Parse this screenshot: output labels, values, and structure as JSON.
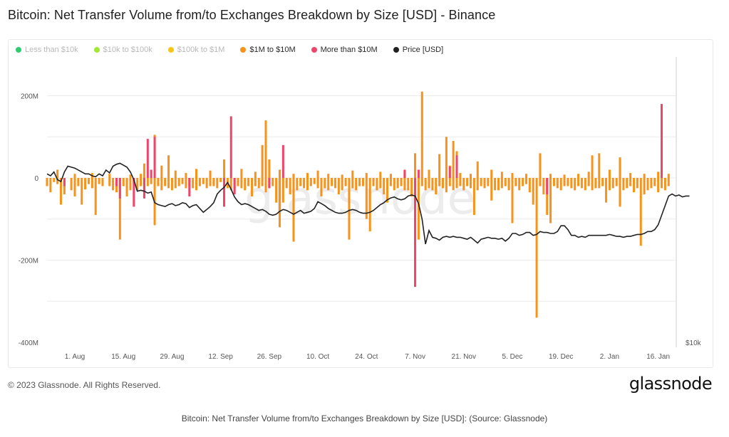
{
  "page": {
    "title": "Bitcoin: Net Transfer Volume from/to Exchanges Breakdown by Size [USD] - Binance",
    "copyright": "© 2023 Glassnode. All Rights Reserved.",
    "brand": "glassnode",
    "watermark": "glassnode",
    "caption": "Bitcoin: Net Transfer Volume from/to Exchanges Breakdown by Size [USD]: (Source: Glassnode)"
  },
  "legend": [
    {
      "label": "Less than $10k",
      "color": "#2ecc71",
      "active": false
    },
    {
      "label": "$10k to $100k",
      "color": "#a3e635",
      "active": false
    },
    {
      "label": "$100k to $1M",
      "color": "#f5c518",
      "active": false
    },
    {
      "label": "$1M to $10M",
      "color": "#f7931a",
      "active": true
    },
    {
      "label": "More than $10M",
      "color": "#f0456a",
      "active": true
    },
    {
      "label": "Price [USD]",
      "color": "#222222",
      "active": true
    }
  ],
  "chart_data": {
    "type": "bar",
    "title": "Bitcoin: Net Transfer Volume from/to Exchanges Breakdown by Size [USD] - Binance",
    "ylim": [
      -400,
      200
    ],
    "y_unit": "M USD",
    "yticks": [
      "200M",
      "0",
      "-200M",
      "-400M"
    ],
    "ytick_values": [
      200,
      0,
      -200,
      -400
    ],
    "right_axis_label": "$10k",
    "xticks": [
      "1. Aug",
      "15. Aug",
      "29. Aug",
      "12. Sep",
      "26. Sep",
      "10. Oct",
      "24. Oct",
      "7. Nov",
      "21. Nov",
      "5. Dec",
      "19. Dec",
      "2. Jan",
      "16. Jan"
    ],
    "xtick_day_index": [
      8,
      22,
      36,
      50,
      64,
      78,
      92,
      106,
      120,
      134,
      148,
      162,
      176
    ],
    "day_range": [
      0,
      181
    ],
    "series": [
      {
        "name": "$1M to $10M",
        "color": "#f7931a",
        "values": [
          -20,
          -35,
          -10,
          -15,
          -65,
          -40,
          0,
          -30,
          -45,
          -20,
          -65,
          -28,
          -15,
          -25,
          -90,
          -15,
          -20,
          0,
          -20,
          -30,
          -35,
          -150,
          -20,
          -45,
          -30,
          -15,
          -30,
          -20,
          -45,
          -20,
          -15,
          -115,
          -20,
          -30,
          -20,
          -25,
          -30,
          -25,
          -20,
          -15,
          -25,
          -20,
          -25,
          -30,
          -20,
          -15,
          -25,
          -20,
          -20,
          -25,
          -10,
          -20,
          -25,
          -30,
          -35,
          -20,
          -25,
          -30,
          -20,
          -45,
          -20,
          -25,
          -20,
          -35,
          -25,
          -20,
          -60,
          -120,
          -60,
          -25,
          -40,
          -155,
          -30,
          -20,
          -25,
          -30,
          -20,
          -15,
          -25,
          -45,
          -25,
          -30,
          -20,
          -25,
          -40,
          -30,
          -20,
          -150,
          -25,
          -30,
          -20,
          -20,
          -100,
          -130,
          -20,
          -30,
          -25,
          -40,
          -60,
          -20,
          -30,
          -25,
          -20,
          -30,
          -30,
          -45,
          -20,
          -150,
          -20,
          -30,
          -25,
          -30,
          -40,
          -20,
          -25,
          -35,
          -20,
          -30,
          -25,
          -20,
          -30,
          -20,
          -25,
          -90,
          -30,
          -20,
          -25,
          -20,
          -55,
          -30,
          -30,
          -25,
          -20,
          -30,
          -110,
          -20,
          -30,
          -20,
          -15,
          -35,
          -65,
          -340,
          -20,
          -40,
          -90,
          -110,
          -20,
          -25,
          -30,
          -20,
          -20,
          -25,
          -30,
          -20,
          -25,
          -30,
          -20,
          -30,
          -25,
          -25,
          -20,
          -60,
          -30,
          -25,
          -20,
          -70,
          -30,
          -25,
          -20,
          -35,
          -25,
          -165,
          -40,
          -30,
          -25,
          -20,
          -35,
          -25,
          -30,
          -20
        ],
        "pos": [
          0,
          0,
          0,
          0,
          0,
          0,
          0,
          0,
          0,
          0,
          0,
          0,
          0,
          0,
          0,
          0,
          0,
          0,
          0,
          0,
          0,
          0,
          0,
          0,
          0,
          0,
          0,
          0,
          0,
          0,
          0,
          0,
          0,
          0,
          0,
          0,
          0,
          0,
          0,
          0,
          0,
          0,
          0,
          0,
          0,
          0,
          0,
          0,
          0,
          0,
          0,
          0,
          0,
          0,
          0,
          0,
          0,
          0,
          0,
          0,
          0,
          0,
          0,
          0,
          0,
          0,
          0,
          0,
          0,
          0,
          0,
          0,
          0,
          0,
          0,
          0,
          0,
          0,
          0,
          0,
          0,
          0,
          0,
          0,
          0,
          0,
          0,
          0,
          0,
          0,
          0,
          0,
          0,
          0,
          0,
          0,
          0,
          0,
          0,
          0,
          0,
          0,
          0,
          0,
          0,
          0,
          0,
          0,
          0,
          0,
          0,
          0,
          0,
          0,
          0,
          0,
          0,
          0,
          0,
          0,
          0,
          0,
          0,
          0,
          0,
          0,
          0,
          0,
          0,
          0,
          0,
          0,
          0,
          0,
          0,
          0,
          0,
          0,
          0,
          0,
          0,
          0,
          0,
          0,
          0,
          0,
          0,
          0,
          0,
          0,
          0,
          0,
          0,
          0,
          0,
          0,
          0,
          0,
          0,
          0,
          0,
          0,
          0,
          0,
          0,
          0,
          0,
          0,
          0,
          0,
          0,
          0,
          0,
          0,
          0,
          0,
          0,
          0,
          0,
          0,
          0,
          0
        ]
      },
      {
        "name": "More than $10M",
        "color": "#f0456a",
        "values": [
          0,
          0,
          0,
          0,
          0,
          -20,
          0,
          0,
          0,
          0,
          0,
          0,
          0,
          0,
          0,
          0,
          0,
          0,
          0,
          0,
          -20,
          -50,
          0,
          0,
          0,
          -70,
          0,
          0,
          -50,
          0,
          0,
          0,
          0,
          0,
          0,
          0,
          0,
          0,
          0,
          0,
          0,
          -45,
          0,
          0,
          0,
          0,
          0,
          0,
          0,
          0,
          0,
          -70,
          0,
          0,
          -40,
          0,
          0,
          0,
          0,
          0,
          0,
          0,
          0,
          0,
          -25,
          0,
          0,
          0,
          0,
          0,
          0,
          0,
          0,
          0,
          0,
          0,
          0,
          0,
          0,
          0,
          0,
          0,
          0,
          0,
          0,
          0,
          0,
          0,
          0,
          0,
          0,
          0,
          0,
          0,
          0,
          0,
          0,
          0,
          0,
          0,
          0,
          0,
          0,
          0,
          0,
          0,
          -265,
          0,
          0,
          0,
          0,
          0,
          0,
          0,
          0,
          0,
          0,
          0,
          0,
          0,
          0,
          0,
          0,
          0,
          0,
          0,
          0,
          0,
          0,
          0,
          0,
          0,
          0,
          0,
          0,
          0,
          0,
          0,
          0,
          0,
          0,
          0,
          0,
          0,
          -40,
          0,
          0,
          0,
          0,
          0,
          0,
          0,
          0,
          0,
          0,
          0,
          0,
          0,
          0,
          0,
          0,
          0,
          0,
          0,
          0,
          0,
          0,
          0,
          0,
          0,
          0,
          0,
          0,
          0,
          0,
          0,
          0,
          0,
          0,
          0,
          0,
          0,
          0,
          0,
          0,
          0
        ],
        "pos": [
          0,
          0,
          0,
          0,
          0,
          0,
          0,
          0,
          0,
          0,
          0,
          0,
          0,
          0,
          0,
          0,
          0,
          0,
          0,
          0,
          0,
          0,
          0,
          0,
          0,
          0,
          0,
          0,
          0,
          0,
          0,
          0,
          0,
          0,
          0,
          0,
          0,
          0,
          0,
          0,
          0,
          0,
          0,
          0,
          0,
          0,
          0,
          0,
          0,
          0,
          0,
          0,
          0,
          0,
          0,
          0,
          0,
          0,
          0,
          0,
          0,
          0,
          0,
          0,
          0,
          0,
          0,
          0,
          0,
          0,
          0,
          0,
          0,
          0,
          0,
          0,
          0,
          0,
          0,
          0,
          0,
          0,
          0,
          0,
          0,
          0,
          0,
          0,
          0,
          0,
          0,
          0,
          0,
          0,
          0,
          0,
          0,
          0,
          0,
          0,
          0,
          0,
          0,
          0,
          0,
          0,
          0,
          0,
          0,
          0,
          0,
          0,
          0,
          0,
          0,
          0,
          0,
          0,
          0,
          0,
          0,
          0,
          0,
          0,
          0,
          0,
          0,
          0,
          0,
          0,
          0,
          0,
          0,
          0,
          0,
          0,
          0,
          0,
          0,
          0,
          0,
          0,
          0,
          0,
          0,
          0,
          0,
          0,
          0,
          0,
          0,
          0,
          0,
          0,
          0,
          0,
          0,
          0,
          0,
          0,
          0,
          0,
          0,
          0,
          0,
          0,
          0,
          0,
          0,
          0,
          0,
          0,
          0,
          0,
          0,
          0,
          0,
          0,
          0,
          0,
          0,
          0
        ]
      },
      {
        "name": "Price [USD]",
        "color": "#222222",
        "values": [
          23.2,
          23.0,
          23.4,
          22.6,
          22.4,
          23.4,
          24.0,
          23.9,
          23.8,
          23.6,
          23.4,
          23.2,
          23.2,
          23.0,
          22.9,
          23.2,
          23.0,
          23.6,
          23.3,
          24.0,
          24.2,
          24.3,
          24.1,
          23.9,
          23.4,
          22.6,
          21.4,
          21.5,
          21.4,
          21.2,
          21.3,
          20.2,
          20.0,
          19.9,
          19.8,
          20.0,
          20.1,
          19.9,
          20.0,
          20.2,
          20.1,
          19.7,
          19.9,
          20.0,
          19.6,
          19.2,
          19.5,
          19.8,
          20.2,
          21.1,
          21.5,
          21.8,
          22.3,
          21.6,
          20.8,
          20.3,
          20.0,
          20.1,
          20.0,
          19.8,
          19.6,
          19.4,
          19.5,
          19.3,
          19.0,
          18.9,
          19.0,
          19.3,
          19.5,
          19.4,
          19.2,
          19.0,
          19.2,
          19.4,
          19.1,
          19.2,
          19.3,
          19.6,
          20.3,
          20.1,
          19.9,
          19.6,
          19.4,
          19.2,
          19.1,
          19.1,
          19.2,
          19.4,
          19.5,
          19.4,
          19.2,
          19.1,
          19.1,
          19.2,
          19.4,
          19.7,
          20.0,
          20.2,
          20.5,
          20.7,
          20.8,
          20.6,
          20.5,
          20.6,
          20.9,
          21.0,
          20.9,
          20.1,
          18.5,
          15.9,
          17.3,
          16.6,
          16.5,
          16.3,
          16.6,
          16.7,
          16.6,
          16.7,
          16.6,
          16.6,
          16.5,
          16.4,
          16.6,
          16.3,
          16.0,
          16.4,
          16.5,
          16.6,
          16.5,
          16.5,
          16.4,
          16.5,
          16.2,
          16.5,
          17.0,
          17.0,
          16.8,
          16.9,
          17.1,
          17.1,
          16.8,
          16.9,
          17.2,
          17.1,
          17.1,
          17.0,
          17.0,
          17.2,
          17.8,
          17.8,
          17.4,
          16.8,
          16.8,
          16.6,
          16.7,
          16.6,
          16.8,
          16.8,
          16.8,
          16.8,
          16.8,
          16.8,
          16.9,
          16.8,
          16.7,
          16.7,
          16.6,
          16.7,
          16.7,
          16.8,
          16.9,
          16.9,
          17.0,
          17.2,
          17.2,
          17.4,
          17.9,
          18.9,
          19.9,
          20.9,
          21.1,
          20.9,
          21.0,
          20.8,
          20.9,
          20.9
        ]
      }
    ]
  }
}
